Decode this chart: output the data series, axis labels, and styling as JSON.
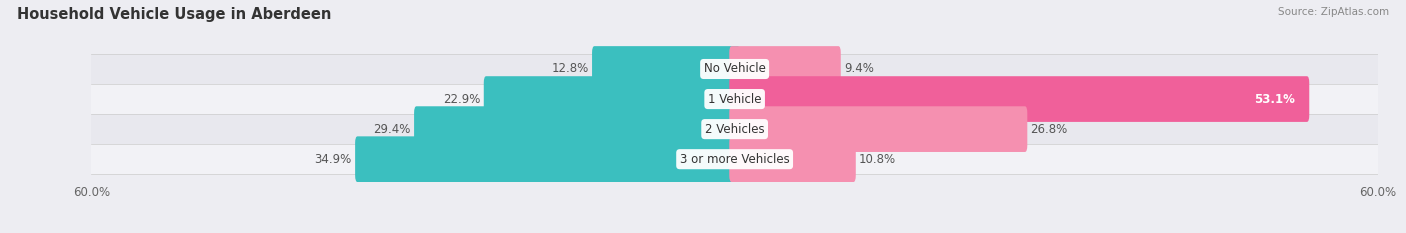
{
  "title": "Household Vehicle Usage in Aberdeen",
  "source": "Source: ZipAtlas.com",
  "categories": [
    "No Vehicle",
    "1 Vehicle",
    "2 Vehicles",
    "3 or more Vehicles"
  ],
  "owner_values": [
    12.8,
    22.9,
    29.4,
    34.9
  ],
  "renter_values": [
    9.4,
    53.1,
    26.8,
    10.8
  ],
  "owner_color": "#3bbfbf",
  "renter_color_normal": "#f590b0",
  "renter_color_highlight": "#f0609a",
  "highlight_index": 1,
  "axis_limit": 60.0,
  "background_color": "#ededf2",
  "row_bg_even": "#e8e8ee",
  "row_bg_odd": "#f2f2f6",
  "title_fontsize": 10.5,
  "source_fontsize": 7.5,
  "bar_label_fontsize": 8.5,
  "category_fontsize": 8.5,
  "axis_label_fontsize": 8.5,
  "legend_fontsize": 8.5,
  "bar_height": 0.52,
  "renter_label_inside_threshold": 45
}
